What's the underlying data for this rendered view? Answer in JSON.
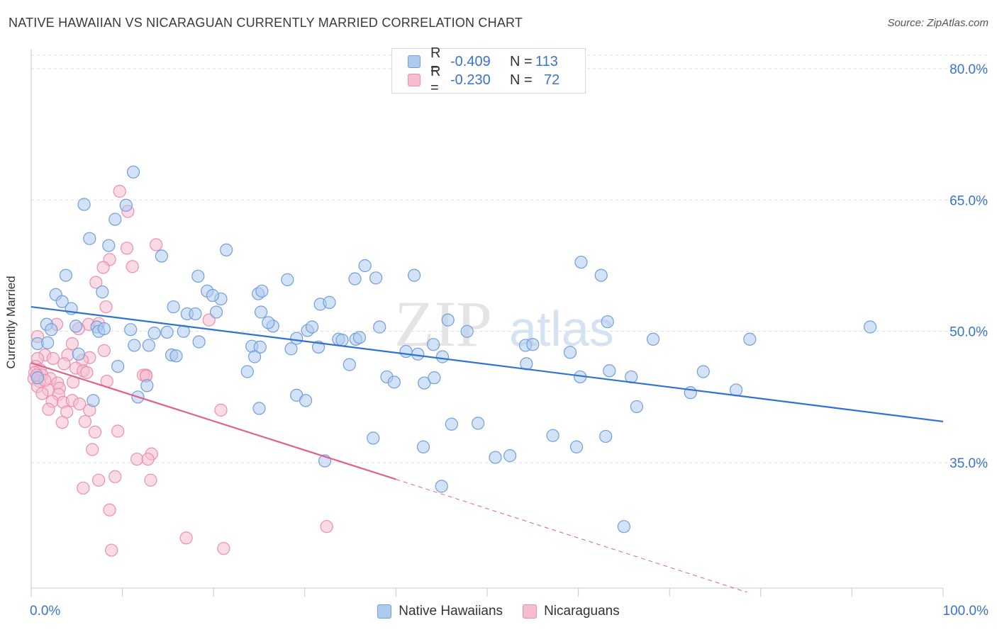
{
  "title": "NATIVE HAWAIIAN VS NICARAGUAN CURRENTLY MARRIED CORRELATION CHART",
  "source": "Source: ZipAtlas.com",
  "watermark": {
    "zip": "ZIP",
    "atlas": "atlas"
  },
  "colors": {
    "blue_fill": "#aecbef",
    "blue_stroke": "#6f9fdd",
    "blue_line": "#2f72d1",
    "pink_fill": "#f6bdd0",
    "pink_stroke": "#ea8fae",
    "pink_line": "#e0608f",
    "grid": "#dcdcdc",
    "tick_text": "#3a74cc"
  },
  "legend": {
    "rows": [
      {
        "r_label": "R =",
        "r_value": "-0.409",
        "n_label": "N =",
        "n_value": "113"
      },
      {
        "r_label": "R =",
        "r_value": "-0.230",
        "n_label": "N =",
        "n_value": "72"
      }
    ]
  },
  "bottom_legend": [
    "Native Hawaiians",
    "Nicaraguans"
  ],
  "chart_data": {
    "type": "scatter",
    "title": "NATIVE HAWAIIAN VS NICARAGUAN CURRENTLY MARRIED CORRELATION CHART",
    "xlabel": "",
    "ylabel": "Currently Married",
    "xlim": [
      0,
      100
    ],
    "ylim": [
      18,
      83
    ],
    "x_tick_labels": [
      "0.0%",
      "100.0%"
    ],
    "y_ticks": [
      35,
      50,
      65,
      80
    ],
    "y_tick_labels": [
      "35.0%",
      "50.0%",
      "65.0%",
      "80.0%"
    ],
    "grid": true,
    "legend_position": "top-center",
    "series": [
      {
        "name": "Native Hawaiians",
        "r": -0.409,
        "n": 113,
        "trend": {
          "x": [
            0,
            100
          ],
          "y": [
            52.8,
            39.7
          ]
        },
        "points": [
          [
            11.2,
            68.2
          ],
          [
            5.8,
            64.5
          ],
          [
            10.4,
            64.4
          ],
          [
            9.2,
            62.8
          ],
          [
            6.4,
            60.6
          ],
          [
            8.5,
            59.8
          ],
          [
            14.3,
            58.6
          ],
          [
            21.4,
            59.3
          ],
          [
            3.8,
            56.4
          ],
          [
            18.3,
            56.3
          ],
          [
            28.1,
            55.9
          ],
          [
            35.5,
            56.0
          ],
          [
            36.6,
            57.5
          ],
          [
            37.8,
            56.1
          ],
          [
            42.0,
            56.4
          ],
          [
            60.3,
            57.9
          ],
          [
            62.5,
            56.4
          ],
          [
            2.7,
            54.2
          ],
          [
            3.4,
            53.4
          ],
          [
            7.8,
            54.5
          ],
          [
            15.6,
            52.8
          ],
          [
            17.1,
            52.0
          ],
          [
            19.3,
            54.6
          ],
          [
            20.3,
            52.2
          ],
          [
            20.8,
            53.7
          ],
          [
            19.9,
            54.1
          ],
          [
            25.2,
            52.2
          ],
          [
            24.9,
            54.3
          ],
          [
            25.3,
            54.6
          ],
          [
            31.7,
            53.1
          ],
          [
            32.7,
            53.3
          ],
          [
            4.4,
            52.6
          ],
          [
            1.7,
            50.8
          ],
          [
            2.2,
            50.2
          ],
          [
            4.9,
            50.6
          ],
          [
            7.2,
            50.5
          ],
          [
            7.4,
            50.0
          ],
          [
            10.9,
            50.2
          ],
          [
            13.5,
            49.8
          ],
          [
            14.9,
            49.9
          ],
          [
            16.7,
            50.0
          ],
          [
            18.4,
            48.8
          ],
          [
            26.5,
            50.6
          ],
          [
            29.1,
            49.2
          ],
          [
            30.3,
            50.1
          ],
          [
            30.8,
            50.5
          ],
          [
            33.7,
            49.1
          ],
          [
            35.6,
            49.1
          ],
          [
            38.2,
            50.5
          ],
          [
            45.7,
            51.3
          ],
          [
            63.2,
            51.1
          ],
          [
            68.2,
            49.1
          ],
          [
            78.8,
            49.1
          ],
          [
            92.0,
            50.5
          ],
          [
            0.7,
            48.6
          ],
          [
            1.8,
            48.7
          ],
          [
            11.3,
            48.4
          ],
          [
            12.9,
            48.4
          ],
          [
            15.4,
            47.3
          ],
          [
            15.9,
            47.2
          ],
          [
            24.2,
            48.3
          ],
          [
            25.1,
            48.2
          ],
          [
            24.5,
            47.1
          ],
          [
            28.5,
            48.0
          ],
          [
            31.5,
            48.2
          ],
          [
            34.1,
            49.0
          ],
          [
            41.1,
            47.7
          ],
          [
            42.4,
            47.4
          ],
          [
            45.1,
            47.1
          ],
          [
            44.1,
            48.5
          ],
          [
            54.2,
            48.4
          ],
          [
            59.1,
            47.6
          ],
          [
            5.2,
            47.4
          ],
          [
            9.5,
            46.0
          ],
          [
            23.7,
            45.4
          ],
          [
            34.9,
            46.2
          ],
          [
            54.3,
            46.3
          ],
          [
            39.0,
            44.8
          ],
          [
            39.8,
            44.2
          ],
          [
            43.1,
            44.1
          ],
          [
            44.2,
            44.7
          ],
          [
            60.2,
            44.8
          ],
          [
            63.4,
            45.5
          ],
          [
            65.8,
            44.8
          ],
          [
            73.7,
            45.4
          ],
          [
            0.7,
            44.7
          ],
          [
            12.7,
            43.8
          ],
          [
            6.8,
            42.1
          ],
          [
            11.7,
            42.5
          ],
          [
            29.1,
            42.7
          ],
          [
            30.1,
            42.1
          ],
          [
            25.0,
            41.2
          ],
          [
            72.3,
            43.0
          ],
          [
            77.3,
            43.3
          ],
          [
            66.4,
            41.4
          ],
          [
            46.1,
            39.4
          ],
          [
            49.0,
            39.5
          ],
          [
            37.5,
            37.8
          ],
          [
            43.0,
            36.8
          ],
          [
            57.2,
            38.1
          ],
          [
            59.8,
            36.8
          ],
          [
            63.0,
            38.0
          ],
          [
            50.9,
            35.6
          ],
          [
            52.5,
            35.8
          ],
          [
            32.2,
            35.2
          ],
          [
            45.0,
            32.3
          ],
          [
            65.0,
            27.7
          ],
          [
            55.0,
            48.5
          ],
          [
            36.0,
            49.3
          ],
          [
            18.0,
            52.0
          ],
          [
            8.0,
            50.3
          ],
          [
            26.0,
            51.0
          ],
          [
            47.8,
            50.0
          ]
        ]
      },
      {
        "name": "Nicaraguans",
        "r": -0.23,
        "n": 72,
        "trend": {
          "x": [
            0,
            40
          ],
          "y": [
            46.4,
            33.1
          ]
        },
        "trend_extension": {
          "x": [
            40,
            78.5
          ],
          "y": [
            33.1,
            20.2
          ]
        },
        "points": [
          [
            9.7,
            66.0
          ],
          [
            10.6,
            63.7
          ],
          [
            13.7,
            59.9
          ],
          [
            10.5,
            59.5
          ],
          [
            8.6,
            58.2
          ],
          [
            11.1,
            57.4
          ],
          [
            7.9,
            57.3
          ],
          [
            7.1,
            55.6
          ],
          [
            8.2,
            52.8
          ],
          [
            19.5,
            51.3
          ],
          [
            2.8,
            50.8
          ],
          [
            6.3,
            50.8
          ],
          [
            7.4,
            50.9
          ],
          [
            5.2,
            50.3
          ],
          [
            0.7,
            49.4
          ],
          [
            4.5,
            48.6
          ],
          [
            8.0,
            47.8
          ],
          [
            1.5,
            47.3
          ],
          [
            4.0,
            47.3
          ],
          [
            0.7,
            46.9
          ],
          [
            2.4,
            46.9
          ],
          [
            6.4,
            47.0
          ],
          [
            0.5,
            46.0
          ],
          [
            1.0,
            45.6
          ],
          [
            3.6,
            46.3
          ],
          [
            5.6,
            46.7
          ],
          [
            4.9,
            45.8
          ],
          [
            0.4,
            45.3
          ],
          [
            1.2,
            45.0
          ],
          [
            5.7,
            45.5
          ],
          [
            6.1,
            45.3
          ],
          [
            12.6,
            45.0
          ],
          [
            12.3,
            45.0
          ],
          [
            0.3,
            44.6
          ],
          [
            2.1,
            44.6
          ],
          [
            0.9,
            44.3
          ],
          [
            2.9,
            44.1
          ],
          [
            4.6,
            44.2
          ],
          [
            8.3,
            44.3
          ],
          [
            0.7,
            43.7
          ],
          [
            1.9,
            43.3
          ],
          [
            3.1,
            43.5
          ],
          [
            1.2,
            42.9
          ],
          [
            3.0,
            42.8
          ],
          [
            2.3,
            42.0
          ],
          [
            3.5,
            41.9
          ],
          [
            4.5,
            42.1
          ],
          [
            5.3,
            41.7
          ],
          [
            1.9,
            41.1
          ],
          [
            3.9,
            40.8
          ],
          [
            6.4,
            41.0
          ],
          [
            20.8,
            41.0
          ],
          [
            3.4,
            39.6
          ],
          [
            5.9,
            39.7
          ],
          [
            7.0,
            38.5
          ],
          [
            9.5,
            38.6
          ],
          [
            6.7,
            36.5
          ],
          [
            13.2,
            36.0
          ],
          [
            11.6,
            35.4
          ],
          [
            12.8,
            35.4
          ],
          [
            9.2,
            33.4
          ],
          [
            7.4,
            33.0
          ],
          [
            13.1,
            33.0
          ],
          [
            5.7,
            32.1
          ],
          [
            8.6,
            29.6
          ],
          [
            32.4,
            27.7
          ],
          [
            17.0,
            26.4
          ],
          [
            8.8,
            25.0
          ],
          [
            21.1,
            25.2
          ],
          [
            12.6,
            44.9
          ],
          [
            0.6,
            45.0
          ],
          [
            1.5,
            44.4
          ]
        ]
      }
    ]
  }
}
